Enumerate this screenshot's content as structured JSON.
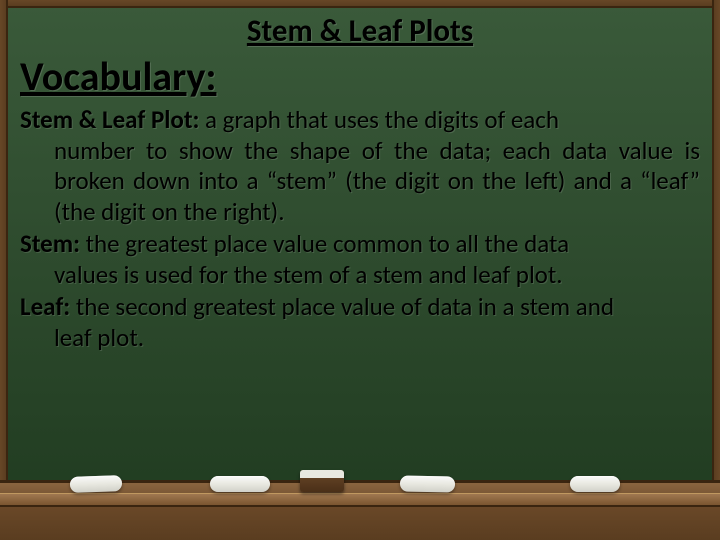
{
  "slide": {
    "title": "Stem & Leaf Plots",
    "section_heading": "Vocabulary:",
    "definitions": [
      {
        "term": "Stem & Leaf Plot:",
        "first_line": " a graph that uses the digits of each",
        "rest": "number to show the shape of the data; each data value is broken down into a “stem” (the digit on the left) and a “leaf” (the digit on the right)."
      },
      {
        "term": "Stem:",
        "first_line": " the greatest place value common to all the data",
        "rest": "values is used for the stem of a stem and leaf plot."
      },
      {
        "term": "Leaf:",
        "first_line": " the second greatest place value of data in a stem and",
        "rest": "leaf plot."
      }
    ]
  },
  "style": {
    "background_gradient": [
      "#3a5a3a",
      "#2d4a2d",
      "#1f3a1f"
    ],
    "wood_frame": [
      "#7a5530",
      "#5a3d20",
      "#3a2510"
    ],
    "text_color": "#000000",
    "title_fontsize": 31,
    "heading_fontsize": 40,
    "body_fontsize": 25,
    "chalk_color": "#fafafa"
  }
}
